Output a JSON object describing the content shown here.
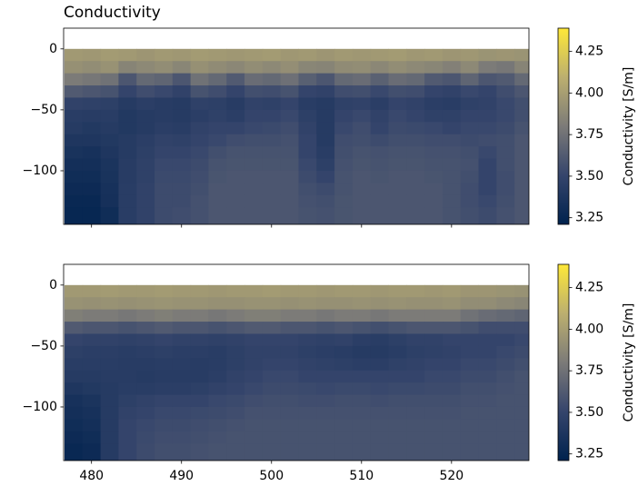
{
  "chart_data": [
    {
      "type": "heatmap",
      "title": "Conductivity",
      "colorbar_label": "Conductivity [S/m]",
      "colormap_colors": [
        "#00224e",
        "#35456c",
        "#7c7b78",
        "#bcaf6f",
        "#fee838"
      ],
      "xlim": [
        476.9,
        528.6
      ],
      "ylim": [
        -144,
        17
      ],
      "clim": [
        3.21,
        4.39
      ],
      "xticks": [
        480,
        490,
        500,
        510,
        520
      ],
      "show_xtick_labels": false,
      "yticks": [
        0,
        {
          "value": -50,
          "label": "−50"
        },
        {
          "value": -100,
          "label": "−100"
        }
      ],
      "cticks": [
        3.25,
        {
          "value": 3.5,
          "label": "3.50"
        },
        3.75,
        {
          "value": 4,
          "label": "4.00"
        },
        4.25
      ],
      "x_edges": [
        477,
        479,
        481,
        483,
        485,
        487,
        489,
        491,
        493,
        495,
        497,
        499,
        501,
        503,
        505,
        507,
        509,
        511,
        513,
        515,
        517,
        519,
        521,
        523,
        525,
        527,
        529
      ],
      "y_edges": [
        0,
        -10,
        -20,
        -30,
        -40,
        -50,
        -60,
        -70,
        -80,
        -90,
        -100,
        -110,
        -120,
        -130,
        -145
      ],
      "values": [
        [
          3.97,
          3.96,
          3.98,
          3.97,
          3.95,
          3.97,
          3.96,
          3.98,
          3.97,
          3.96,
          3.97,
          3.98,
          3.96,
          3.97,
          3.95,
          3.97,
          3.96,
          3.97,
          3.98,
          3.96,
          3.97,
          3.95,
          3.96,
          3.94,
          3.95,
          3.94
        ],
        [
          3.92,
          3.9,
          3.93,
          3.85,
          3.88,
          3.9,
          3.86,
          3.92,
          3.89,
          3.87,
          3.9,
          3.88,
          3.91,
          3.86,
          3.85,
          3.89,
          3.9,
          3.87,
          3.9,
          3.88,
          3.86,
          3.83,
          3.88,
          3.8,
          3.78,
          3.85
        ],
        [
          3.8,
          3.78,
          3.75,
          3.6,
          3.7,
          3.68,
          3.6,
          3.75,
          3.7,
          3.62,
          3.72,
          3.7,
          3.74,
          3.65,
          3.6,
          3.7,
          3.72,
          3.66,
          3.72,
          3.7,
          3.62,
          3.6,
          3.68,
          3.6,
          3.62,
          3.7
        ],
        [
          3.62,
          3.6,
          3.58,
          3.5,
          3.55,
          3.52,
          3.48,
          3.58,
          3.55,
          3.5,
          3.56,
          3.55,
          3.58,
          3.5,
          3.48,
          3.55,
          3.56,
          3.52,
          3.56,
          3.55,
          3.5,
          3.48,
          3.52,
          3.5,
          3.55,
          3.6
        ],
        [
          3.48,
          3.47,
          3.46,
          3.42,
          3.45,
          3.43,
          3.42,
          3.47,
          3.46,
          3.43,
          3.48,
          3.47,
          3.5,
          3.44,
          3.42,
          3.47,
          3.48,
          3.45,
          3.5,
          3.48,
          3.45,
          3.44,
          3.47,
          3.48,
          3.52,
          3.56
        ],
        [
          3.44,
          3.43,
          3.44,
          3.4,
          3.42,
          3.43,
          3.42,
          3.45,
          3.47,
          3.45,
          3.5,
          3.5,
          3.52,
          3.46,
          3.42,
          3.5,
          3.52,
          3.48,
          3.52,
          3.5,
          3.47,
          3.47,
          3.5,
          3.5,
          3.52,
          3.56
        ],
        [
          3.42,
          3.4,
          3.42,
          3.4,
          3.42,
          3.45,
          3.44,
          3.48,
          3.5,
          3.5,
          3.52,
          3.53,
          3.55,
          3.48,
          3.42,
          3.52,
          3.55,
          3.5,
          3.54,
          3.53,
          3.52,
          3.5,
          3.52,
          3.52,
          3.54,
          3.58
        ],
        [
          3.38,
          3.38,
          3.4,
          3.42,
          3.45,
          3.48,
          3.47,
          3.5,
          3.52,
          3.55,
          3.56,
          3.56,
          3.57,
          3.5,
          3.42,
          3.55,
          3.56,
          3.54,
          3.56,
          3.56,
          3.55,
          3.55,
          3.54,
          3.55,
          3.56,
          3.6
        ],
        [
          3.35,
          3.34,
          3.38,
          3.42,
          3.46,
          3.5,
          3.5,
          3.52,
          3.56,
          3.58,
          3.58,
          3.58,
          3.58,
          3.5,
          3.44,
          3.56,
          3.58,
          3.57,
          3.58,
          3.58,
          3.57,
          3.57,
          3.56,
          3.52,
          3.56,
          3.6
        ],
        [
          3.32,
          3.32,
          3.36,
          3.43,
          3.47,
          3.52,
          3.52,
          3.54,
          3.58,
          3.59,
          3.59,
          3.59,
          3.59,
          3.52,
          3.46,
          3.57,
          3.59,
          3.58,
          3.59,
          3.59,
          3.58,
          3.58,
          3.57,
          3.5,
          3.56,
          3.6
        ],
        [
          3.3,
          3.3,
          3.35,
          3.43,
          3.47,
          3.53,
          3.53,
          3.55,
          3.59,
          3.6,
          3.6,
          3.6,
          3.6,
          3.54,
          3.5,
          3.58,
          3.6,
          3.59,
          3.6,
          3.6,
          3.59,
          3.58,
          3.56,
          3.5,
          3.55,
          3.6
        ],
        [
          3.28,
          3.28,
          3.34,
          3.44,
          3.48,
          3.54,
          3.54,
          3.56,
          3.6,
          3.6,
          3.6,
          3.6,
          3.6,
          3.56,
          3.54,
          3.58,
          3.6,
          3.6,
          3.6,
          3.6,
          3.6,
          3.58,
          3.55,
          3.5,
          3.55,
          3.6
        ],
        [
          3.26,
          3.26,
          3.33,
          3.44,
          3.48,
          3.54,
          3.54,
          3.57,
          3.6,
          3.6,
          3.6,
          3.6,
          3.6,
          3.57,
          3.56,
          3.59,
          3.6,
          3.6,
          3.6,
          3.6,
          3.6,
          3.58,
          3.55,
          3.52,
          3.56,
          3.6
        ],
        [
          3.25,
          3.25,
          3.3,
          3.44,
          3.48,
          3.54,
          3.55,
          3.57,
          3.6,
          3.6,
          3.6,
          3.6,
          3.6,
          3.58,
          3.57,
          3.59,
          3.6,
          3.6,
          3.6,
          3.6,
          3.6,
          3.58,
          3.56,
          3.54,
          3.57,
          3.6
        ]
      ]
    },
    {
      "type": "heatmap",
      "colorbar_label": "Conductivity [S/m]",
      "colormap_colors": [
        "#00224e",
        "#35456c",
        "#7c7b78",
        "#bcaf6f",
        "#fee838"
      ],
      "xlim": [
        476.9,
        528.6
      ],
      "ylim": [
        -144,
        17
      ],
      "clim": [
        3.21,
        4.39
      ],
      "xticks": [
        480,
        490,
        500,
        510,
        520
      ],
      "show_xtick_labels": true,
      "yticks": [
        0,
        {
          "value": -50,
          "label": "−50"
        },
        {
          "value": -100,
          "label": "−100"
        }
      ],
      "cticks": [
        3.25,
        {
          "value": 3.5,
          "label": "3.50"
        },
        3.75,
        {
          "value": 4,
          "label": "4.00"
        },
        4.25
      ],
      "x_edges": [
        477,
        479,
        481,
        483,
        485,
        487,
        489,
        491,
        493,
        495,
        497,
        499,
        501,
        503,
        505,
        507,
        509,
        511,
        513,
        515,
        517,
        519,
        521,
        523,
        525,
        527,
        529
      ],
      "y_edges": [
        0,
        -10,
        -20,
        -30,
        -40,
        -50,
        -60,
        -70,
        -80,
        -90,
        -100,
        -110,
        -120,
        -130,
        -145
      ],
      "values": [
        [
          3.97,
          3.97,
          3.98,
          3.97,
          3.97,
          3.98,
          3.97,
          3.97,
          3.96,
          3.97,
          3.97,
          3.98,
          3.97,
          3.97,
          3.96,
          3.97,
          3.97,
          3.96,
          3.97,
          3.97,
          3.96,
          3.97,
          3.95,
          3.95,
          3.94,
          3.93
        ],
        [
          3.93,
          3.92,
          3.93,
          3.92,
          3.93,
          3.94,
          3.93,
          3.93,
          3.92,
          3.92,
          3.93,
          3.93,
          3.92,
          3.93,
          3.92,
          3.92,
          3.93,
          3.92,
          3.93,
          3.92,
          3.92,
          3.93,
          3.9,
          3.9,
          3.88,
          3.86
        ],
        [
          3.82,
          3.8,
          3.8,
          3.78,
          3.8,
          3.82,
          3.8,
          3.8,
          3.78,
          3.8,
          3.82,
          3.82,
          3.8,
          3.8,
          3.78,
          3.8,
          3.8,
          3.78,
          3.8,
          3.8,
          3.8,
          3.8,
          3.75,
          3.72,
          3.7,
          3.68
        ],
        [
          3.62,
          3.6,
          3.6,
          3.58,
          3.6,
          3.62,
          3.6,
          3.6,
          3.58,
          3.6,
          3.62,
          3.62,
          3.6,
          3.6,
          3.58,
          3.6,
          3.58,
          3.56,
          3.58,
          3.6,
          3.6,
          3.6,
          3.58,
          3.55,
          3.55,
          3.55
        ],
        [
          3.5,
          3.48,
          3.48,
          3.47,
          3.48,
          3.5,
          3.48,
          3.48,
          3.47,
          3.48,
          3.5,
          3.5,
          3.5,
          3.48,
          3.47,
          3.48,
          3.45,
          3.44,
          3.46,
          3.48,
          3.48,
          3.5,
          3.5,
          3.5,
          3.5,
          3.52
        ],
        [
          3.46,
          3.45,
          3.45,
          3.44,
          3.45,
          3.46,
          3.45,
          3.45,
          3.44,
          3.46,
          3.48,
          3.48,
          3.48,
          3.46,
          3.45,
          3.44,
          3.42,
          3.42,
          3.44,
          3.46,
          3.47,
          3.48,
          3.5,
          3.5,
          3.52,
          3.54
        ],
        [
          3.44,
          3.44,
          3.44,
          3.43,
          3.43,
          3.44,
          3.44,
          3.43,
          3.44,
          3.46,
          3.48,
          3.5,
          3.5,
          3.48,
          3.47,
          3.46,
          3.45,
          3.45,
          3.47,
          3.48,
          3.5,
          3.5,
          3.52,
          3.52,
          3.54,
          3.56
        ],
        [
          3.42,
          3.42,
          3.43,
          3.43,
          3.42,
          3.43,
          3.43,
          3.43,
          3.45,
          3.48,
          3.5,
          3.52,
          3.52,
          3.5,
          3.5,
          3.5,
          3.5,
          3.5,
          3.5,
          3.5,
          3.52,
          3.52,
          3.54,
          3.54,
          3.56,
          3.58
        ],
        [
          3.38,
          3.4,
          3.42,
          3.44,
          3.44,
          3.45,
          3.45,
          3.46,
          3.48,
          3.5,
          3.52,
          3.54,
          3.54,
          3.53,
          3.52,
          3.53,
          3.53,
          3.52,
          3.53,
          3.53,
          3.54,
          3.54,
          3.56,
          3.56,
          3.57,
          3.58
        ],
        [
          3.34,
          3.36,
          3.42,
          3.46,
          3.48,
          3.5,
          3.5,
          3.5,
          3.52,
          3.53,
          3.55,
          3.56,
          3.56,
          3.55,
          3.55,
          3.56,
          3.56,
          3.55,
          3.56,
          3.56,
          3.56,
          3.56,
          3.57,
          3.57,
          3.58,
          3.58
        ],
        [
          3.32,
          3.34,
          3.42,
          3.48,
          3.5,
          3.52,
          3.52,
          3.53,
          3.54,
          3.55,
          3.57,
          3.57,
          3.57,
          3.57,
          3.57,
          3.57,
          3.57,
          3.57,
          3.57,
          3.57,
          3.57,
          3.57,
          3.58,
          3.58,
          3.58,
          3.58
        ],
        [
          3.3,
          3.32,
          3.42,
          3.5,
          3.52,
          3.54,
          3.54,
          3.55,
          3.56,
          3.57,
          3.58,
          3.58,
          3.58,
          3.58,
          3.58,
          3.58,
          3.58,
          3.58,
          3.58,
          3.58,
          3.58,
          3.58,
          3.58,
          3.58,
          3.58,
          3.58
        ],
        [
          3.28,
          3.3,
          3.42,
          3.5,
          3.53,
          3.55,
          3.55,
          3.56,
          3.57,
          3.58,
          3.58,
          3.58,
          3.58,
          3.58,
          3.58,
          3.58,
          3.58,
          3.58,
          3.58,
          3.58,
          3.58,
          3.58,
          3.58,
          3.58,
          3.58,
          3.58
        ],
        [
          3.26,
          3.28,
          3.42,
          3.5,
          3.54,
          3.56,
          3.56,
          3.57,
          3.58,
          3.58,
          3.58,
          3.58,
          3.58,
          3.58,
          3.58,
          3.58,
          3.58,
          3.58,
          3.58,
          3.58,
          3.58,
          3.58,
          3.58,
          3.58,
          3.58,
          3.58
        ]
      ]
    }
  ]
}
